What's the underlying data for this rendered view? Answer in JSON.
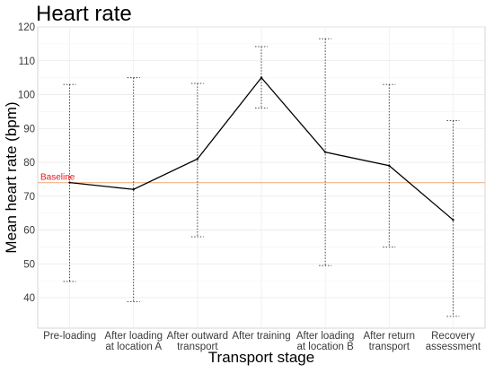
{
  "chart_data": {
    "type": "line",
    "title": "Heart rate",
    "xlabel": "Transport stage",
    "ylabel": "Mean heart rate (bpm)",
    "ylim": [
      31,
      120
    ],
    "yticks": [
      40,
      50,
      60,
      70,
      80,
      90,
      100,
      110,
      120
    ],
    "grid": true,
    "categories": [
      [
        "Pre-loading"
      ],
      [
        "After loading",
        "at location A"
      ],
      [
        "After outward",
        "transport"
      ],
      [
        "After training"
      ],
      [
        "After loading",
        "at location B"
      ],
      [
        "After return",
        "transport"
      ],
      [
        "Recovery",
        "assessment"
      ]
    ],
    "series": [
      {
        "values": [
          74,
          72,
          81,
          105,
          83,
          79,
          63
        ],
        "error_lower": [
          44.8,
          38.8,
          58,
          96,
          49.5,
          55,
          34.5
        ],
        "error_upper": [
          103,
          105,
          103.3,
          114.2,
          116.5,
          103,
          92.3
        ],
        "color": "#000000"
      }
    ],
    "reference_line": {
      "value": 74,
      "label": "Baseline",
      "line_color": "#f0b48a",
      "label_color": "#e8141c"
    }
  }
}
